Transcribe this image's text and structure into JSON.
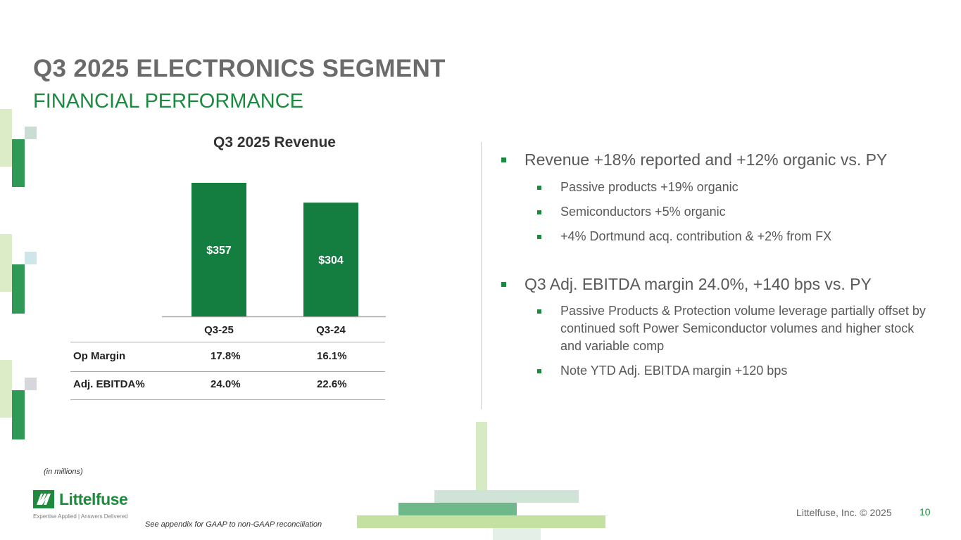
{
  "slide": {
    "title": "Q3 2025 ELECTRONICS SEGMENT",
    "subtitle": "FINANCIAL PERFORMANCE"
  },
  "chart_data": {
    "type": "bar",
    "title": "Q3 2025 Revenue",
    "categories": [
      "Q3-25",
      "Q3-24"
    ],
    "values": [
      357,
      304
    ],
    "data_labels": [
      "$357",
      "$304"
    ],
    "ylim": [
      0,
      357
    ],
    "grid": false,
    "colors": [
      "#137e3f",
      "#137e3f"
    ]
  },
  "metrics_table": {
    "rows": [
      {
        "label": "Op Margin",
        "values": [
          "17.8%",
          "16.1%"
        ]
      },
      {
        "label": "Adj. EBITDA%",
        "values": [
          "24.0%",
          "22.6%"
        ]
      }
    ]
  },
  "bullets": [
    {
      "text": "Revenue +18% reported and +12% organic vs. PY",
      "sub": [
        "Passive products +19% organic",
        "Semiconductors +5% organic",
        "+4% Dortmund acq. contribution & +2% from FX"
      ]
    },
    {
      "text": "Q3 Adj. EBITDA margin 24.0%, +140 bps vs. PY",
      "sub": [
        "Passive Products & Protection volume leverage partially offset by continued soft Power Semiconductor volumes and higher stock and variable comp",
        "Note YTD Adj. EBITDA margin +120 bps"
      ]
    }
  ],
  "footer": {
    "units_note": "(in millions)",
    "gaap_note": "See appendix for GAAP to non-GAAP reconciliation",
    "copyright": "Littelfuse, Inc. © 2025",
    "page_number": "10"
  },
  "logo": {
    "name": "Littelfuse",
    "tagline": "Expertise Applied | Answers Delivered",
    "icon": "littelfuse-logo-icon"
  },
  "theme": {
    "accent": "#1a8a3e",
    "title_gray": "#6b6b6b"
  }
}
